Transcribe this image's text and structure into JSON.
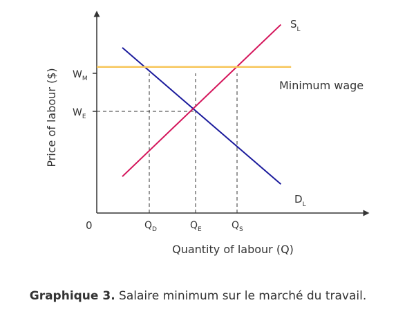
{
  "chart_data": {
    "type": "line",
    "title": "",
    "xlabel": "Quantity of labour (Q)",
    "ylabel": "Price of labour ($)",
    "origin_label": "0",
    "x_range": [
      0,
      100
    ],
    "y_range": [
      0,
      100
    ],
    "series": [
      {
        "name": "D",
        "subscript": "L",
        "color": "#1a1a9c",
        "x": [
          10,
          72
        ],
        "y": [
          86,
          15
        ]
      },
      {
        "name": "S",
        "subscript": "L",
        "color": "#d4145a",
        "x": [
          10,
          72
        ],
        "y": [
          19,
          98
        ]
      },
      {
        "name": "Minimum wage",
        "color": "#f7c65a",
        "x": [
          0,
          76
        ],
        "y": [
          76,
          76
        ]
      }
    ],
    "reference_lines": {
      "y_ticks": [
        {
          "main": "W",
          "sub": "M",
          "value": 76
        },
        {
          "main": "W",
          "sub": "E",
          "value": 59
        }
      ],
      "x_ticks": [
        {
          "main": "Q",
          "sub": "D",
          "value": 20
        },
        {
          "main": "Q",
          "sub": "E",
          "value": 38
        },
        {
          "main": "Q",
          "sub": "S",
          "value": 54
        }
      ]
    },
    "equilibrium": {
      "x": 38,
      "y": 59
    }
  },
  "caption": {
    "label": "Graphique 3.",
    "text": " Salaire minimum sur le marché du travail."
  }
}
